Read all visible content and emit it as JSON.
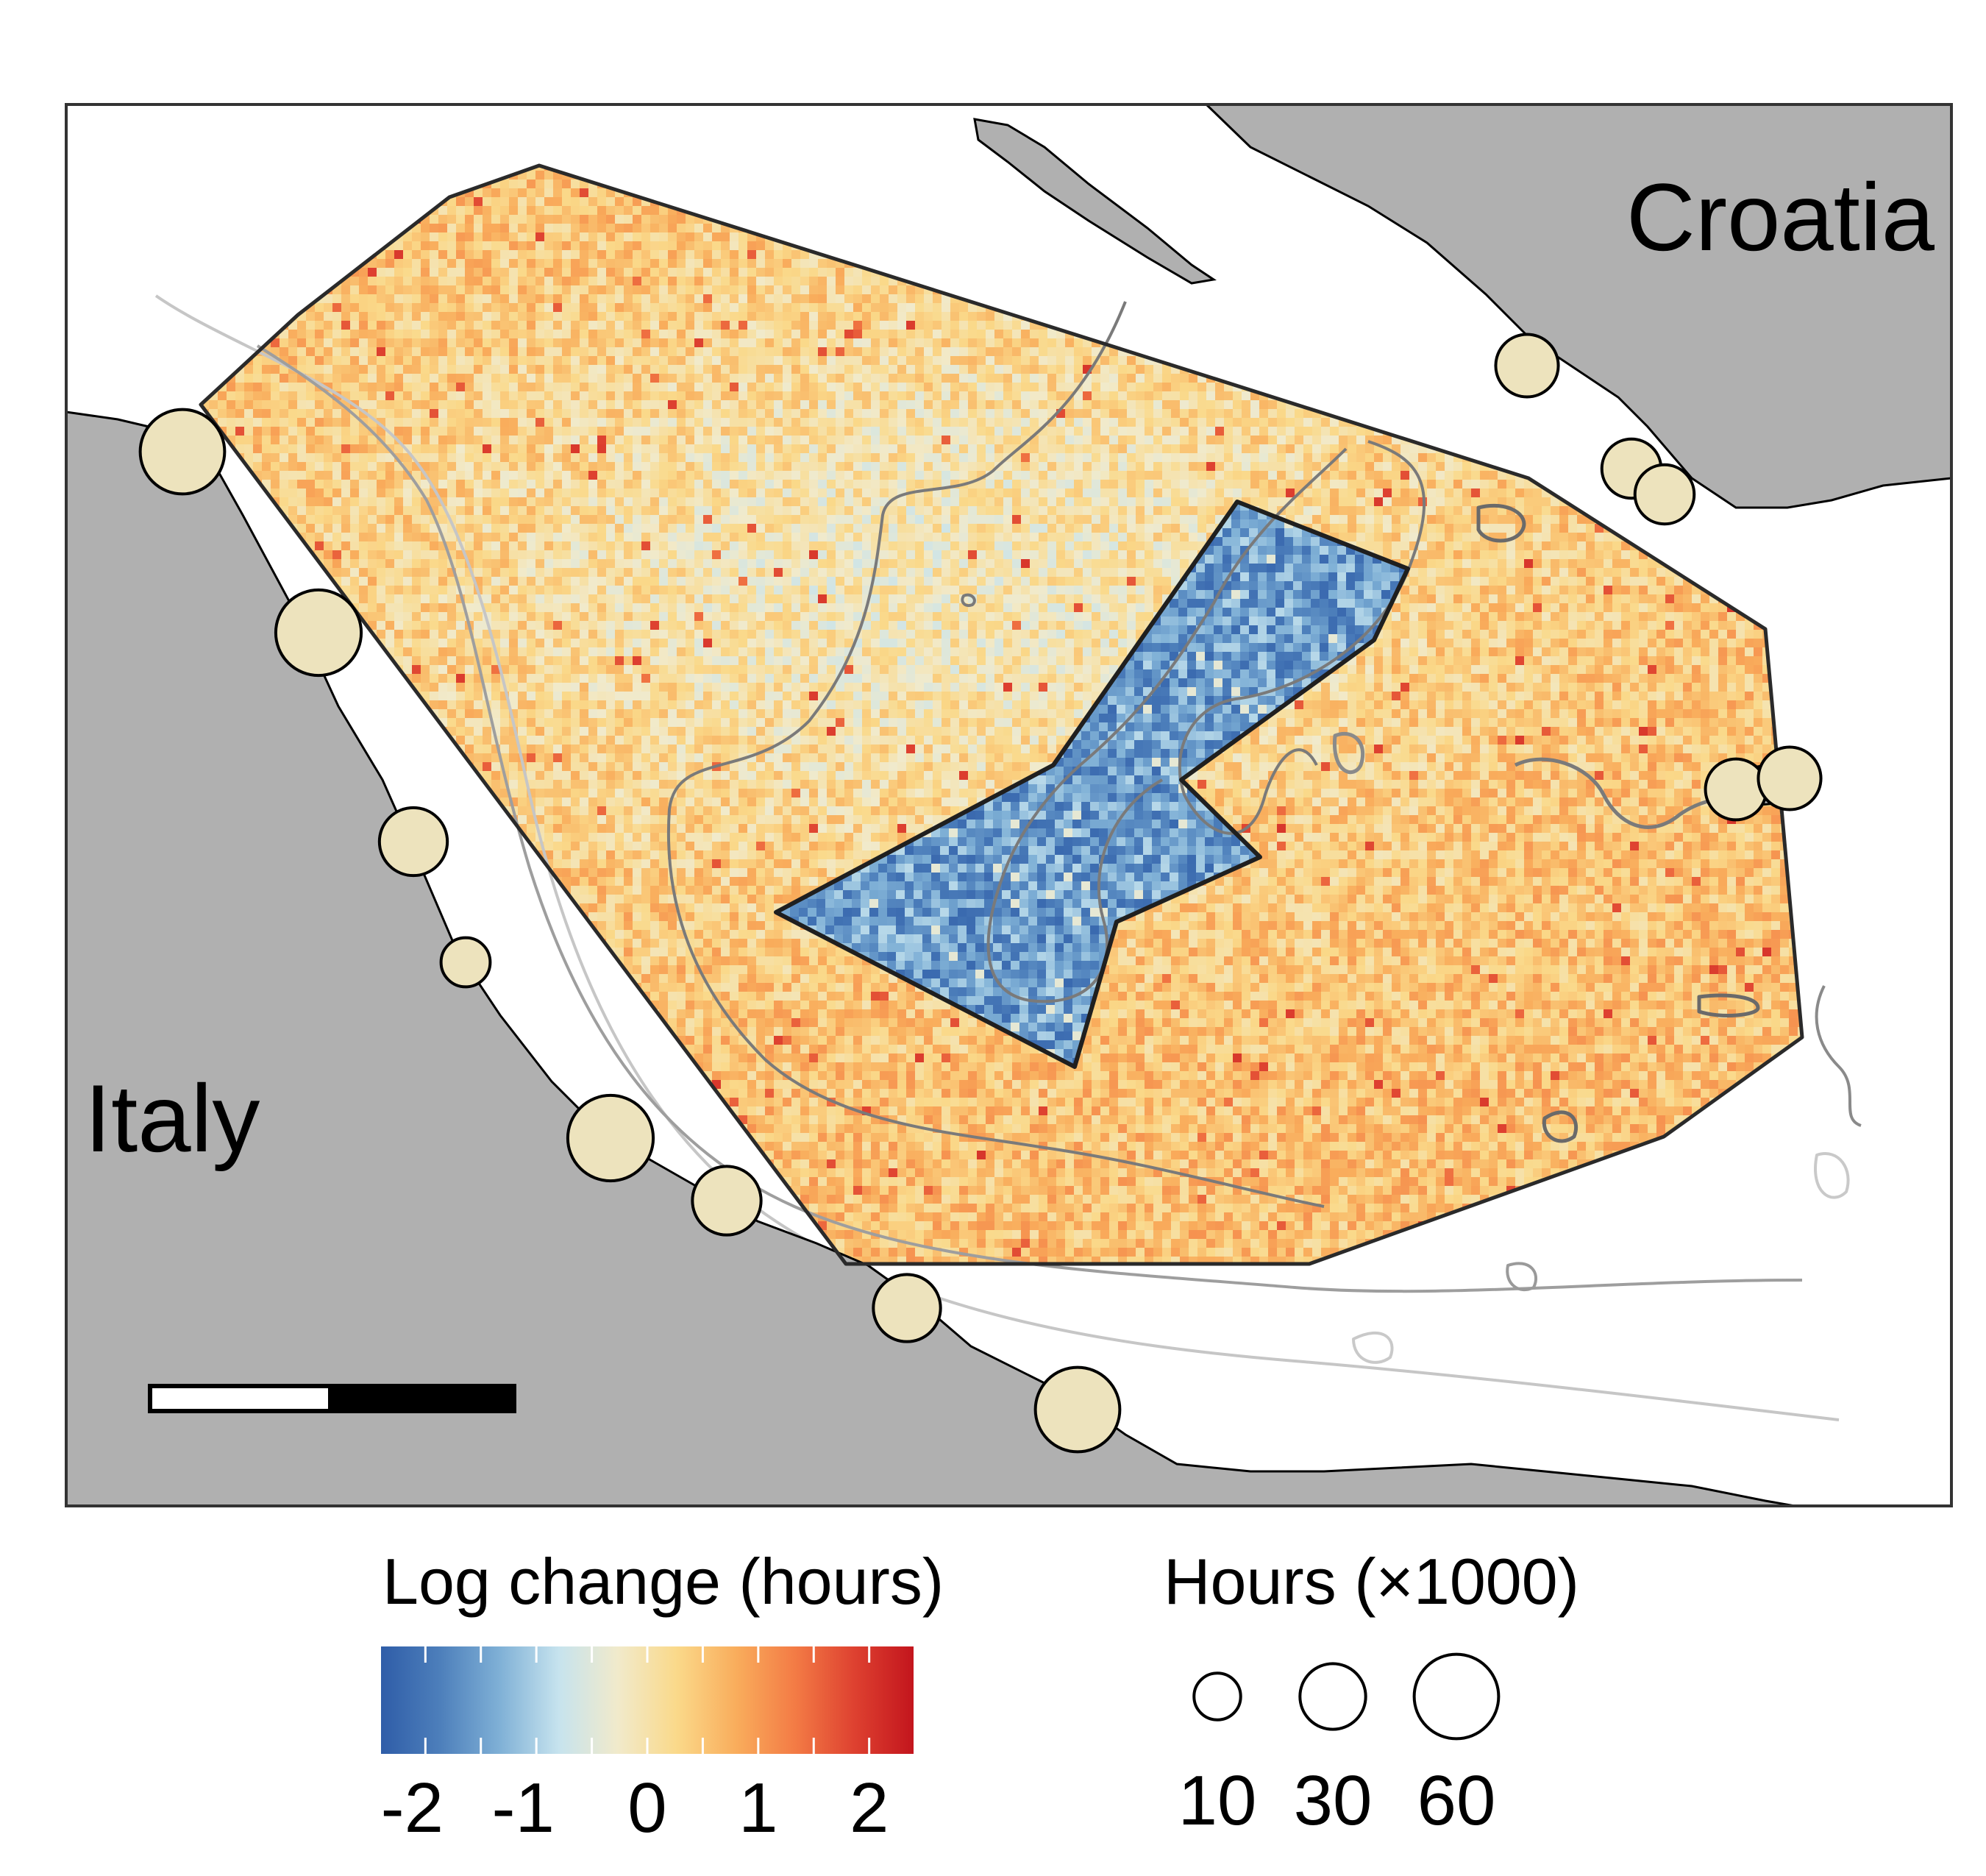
{
  "map": {
    "labels": {
      "country_north": "Croatia",
      "country_south": "Italy"
    },
    "colors": {
      "land": "#b0b0b0",
      "sea": "#ffffff",
      "coastline": "#000000",
      "closure_outline": "#2a2a2a",
      "port_fill": "#ede3bd",
      "port_stroke": "#000000",
      "bathy_shallow": "#c9c9c9",
      "bathy_mid": "#9a9a9a",
      "bathy_deep": "#6a6a6a"
    },
    "ports": [
      {
        "name": "port-north-1",
        "hours_k": 26
      },
      {
        "name": "port-north-2",
        "hours_k": 22
      },
      {
        "name": "port-north-3",
        "hours_k": 22
      },
      {
        "name": "port-north-4",
        "hours_k": 24
      },
      {
        "name": "port-north-5",
        "hours_k": 26
      },
      {
        "name": "port-west-1",
        "hours_k": 60
      },
      {
        "name": "port-west-2",
        "hours_k": 62
      },
      {
        "name": "port-west-3",
        "hours_k": 33
      },
      {
        "name": "port-west-4",
        "hours_k": 12
      },
      {
        "name": "port-south-1",
        "hours_k": 62
      },
      {
        "name": "port-south-2",
        "hours_k": 34
      },
      {
        "name": "port-south-3",
        "hours_k": 32
      },
      {
        "name": "port-south-4",
        "hours_k": 60
      }
    ]
  },
  "legend_color": {
    "title": "Log change (hours)",
    "ticks": [
      "-2",
      "-1",
      "0",
      "1",
      "2"
    ],
    "domain": [
      -2.4,
      2.4
    ],
    "stops": [
      "#2f5da8",
      "#4d7fbb",
      "#7fb0d6",
      "#c6e3ee",
      "#f1eacb",
      "#fad98a",
      "#f9ad5c",
      "#f37b45",
      "#de4130",
      "#c3151d"
    ]
  },
  "legend_size": {
    "title": "Hours (×1000)",
    "values": [
      10,
      30,
      60
    ],
    "labels": [
      "10",
      "30",
      "60"
    ]
  }
}
